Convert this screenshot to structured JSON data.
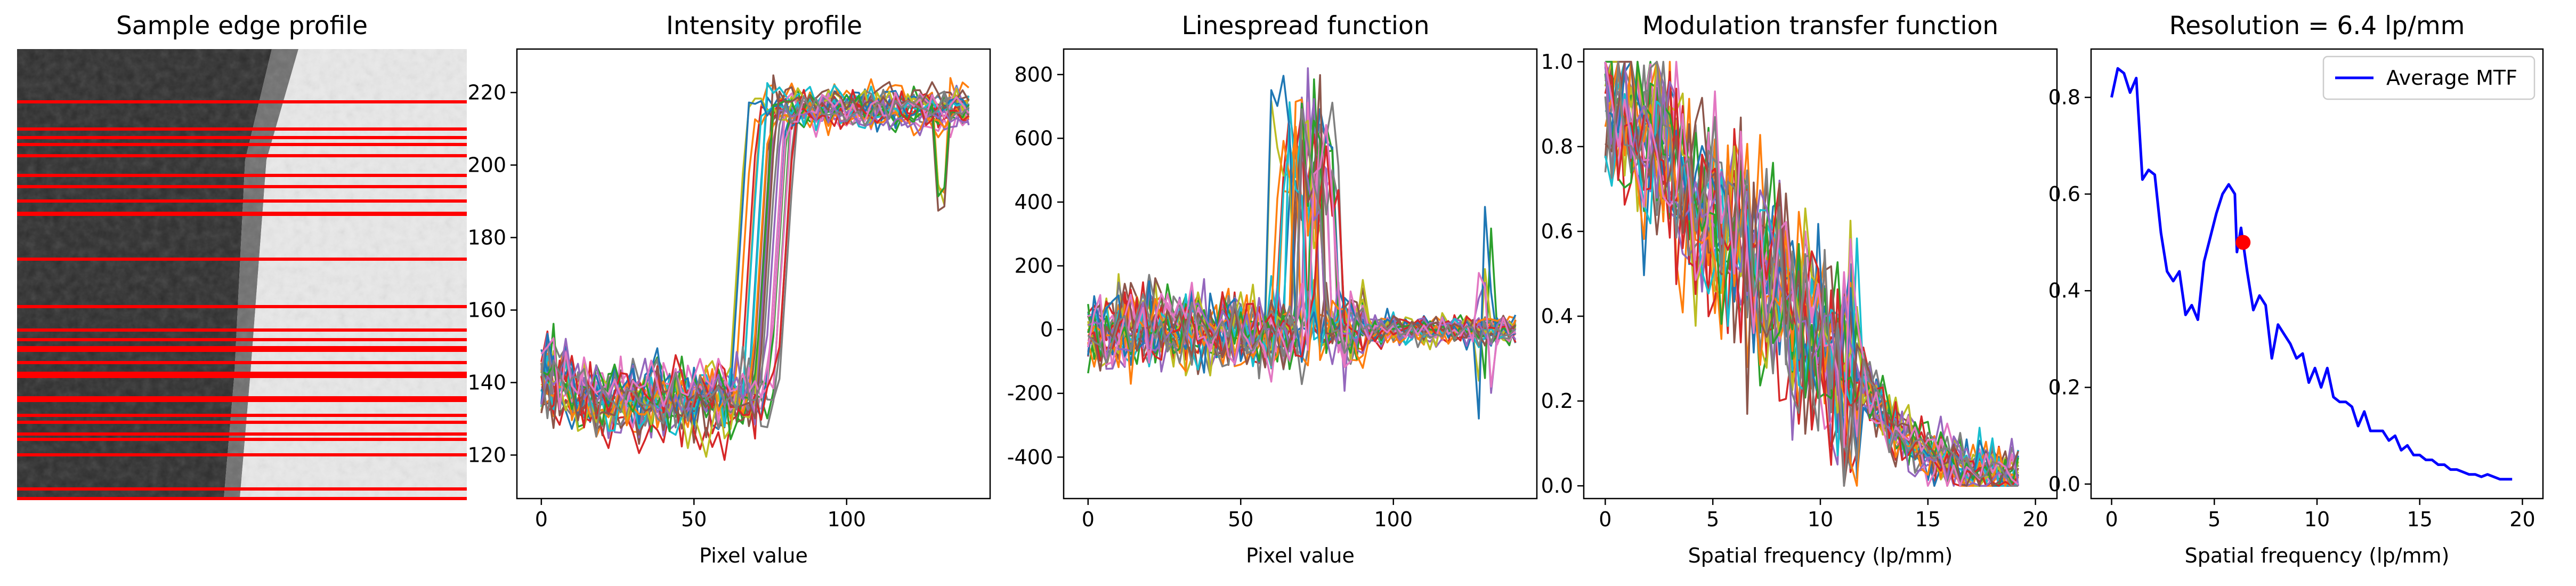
{
  "colors": {
    "red_line": "#ff0000",
    "avg_mtf": "#0000ff",
    "marker": "#ff0000",
    "cycle": [
      "#1f77b4",
      "#ff7f0e",
      "#2ca02c",
      "#d62728",
      "#9467bd",
      "#8c564b",
      "#e377c2",
      "#7f7f7f",
      "#bcbd22",
      "#17becf"
    ]
  },
  "chart_data": [
    {
      "type": "image",
      "title": "Sample edge profile",
      "description_rows_highlighted": 28
    },
    {
      "type": "line",
      "title": "Intensity profile",
      "xlabel": "Pixel value",
      "ylabel": "",
      "xlim": [
        -8,
        147
      ],
      "ylim": [
        108,
        232
      ],
      "xticks": [
        0,
        50,
        100
      ],
      "yticks": [
        120,
        140,
        160,
        180,
        200,
        220
      ],
      "series_count": 28,
      "x": [
        0,
        140
      ],
      "low_level": 135,
      "high_level": 216,
      "edge_range": [
        62,
        80
      ]
    },
    {
      "type": "line",
      "title": "Linespread function",
      "xlabel": "Pixel value",
      "ylabel": "",
      "xlim": [
        -8,
        147
      ],
      "ylim": [
        -530,
        880
      ],
      "xticks": [
        0,
        50,
        100
      ],
      "yticks": [
        -400,
        -200,
        0,
        200,
        400,
        600,
        800
      ],
      "series_count": 28,
      "x": [
        0,
        140
      ],
      "peak_region": [
        55,
        85
      ],
      "peak_max": 820
    },
    {
      "type": "line",
      "title": "Modulation transfer function",
      "xlabel": "Spatial frequency (lp/mm)",
      "ylabel": "",
      "xlim": [
        -1,
        21
      ],
      "ylim": [
        -0.03,
        1.03
      ],
      "xticks": [
        0,
        5,
        10,
        15,
        20
      ],
      "yticks": [
        0.0,
        0.2,
        0.4,
        0.6,
        0.8,
        1.0
      ],
      "series_count": 28,
      "x": [
        0,
        19.5
      ]
    },
    {
      "type": "line",
      "title": "Resolution = 6.4 lp/mm",
      "xlabel": "Spatial frequency (lp/mm)",
      "ylabel": "",
      "xlim": [
        -1,
        21
      ],
      "ylim": [
        -0.03,
        0.9
      ],
      "xticks": [
        0,
        5,
        10,
        15,
        20
      ],
      "yticks": [
        0.0,
        0.2,
        0.4,
        0.6,
        0.8
      ],
      "legend": {
        "placement": "top-right",
        "entries": [
          "Average MTF"
        ]
      },
      "series": [
        {
          "name": "Average MTF",
          "x": [
            0,
            0.3,
            0.6,
            0.9,
            1.2,
            1.5,
            1.8,
            2.1,
            2.4,
            2.7,
            3.0,
            3.3,
            3.6,
            3.9,
            4.2,
            4.5,
            4.8,
            5.1,
            5.4,
            5.7,
            6.0,
            6.1,
            6.3,
            6.6,
            6.9,
            7.2,
            7.5,
            7.8,
            8.1,
            8.4,
            8.7,
            9.0,
            9.3,
            9.6,
            9.9,
            10.2,
            10.5,
            10.8,
            11.1,
            11.4,
            11.7,
            12.0,
            12.3,
            12.6,
            12.9,
            13.2,
            13.5,
            13.8,
            14.1,
            14.4,
            14.7,
            15.0,
            15.3,
            15.6,
            15.9,
            16.2,
            16.5,
            16.8,
            17.1,
            17.4,
            17.7,
            18.0,
            18.3,
            18.6,
            18.9,
            19.2,
            19.5
          ],
          "values": [
            0.8,
            0.86,
            0.85,
            0.81,
            0.84,
            0.63,
            0.65,
            0.64,
            0.52,
            0.44,
            0.42,
            0.44,
            0.35,
            0.37,
            0.34,
            0.46,
            0.51,
            0.56,
            0.6,
            0.62,
            0.6,
            0.48,
            0.53,
            0.44,
            0.36,
            0.39,
            0.37,
            0.26,
            0.33,
            0.31,
            0.29,
            0.26,
            0.27,
            0.21,
            0.24,
            0.2,
            0.24,
            0.18,
            0.17,
            0.17,
            0.16,
            0.12,
            0.15,
            0.11,
            0.11,
            0.11,
            0.09,
            0.1,
            0.07,
            0.08,
            0.06,
            0.06,
            0.05,
            0.05,
            0.04,
            0.04,
            0.03,
            0.03,
            0.025,
            0.02,
            0.02,
            0.015,
            0.02,
            0.015,
            0.01,
            0.01,
            0.01
          ]
        }
      ],
      "marker": {
        "x": 6.4,
        "y": 0.5
      }
    }
  ]
}
